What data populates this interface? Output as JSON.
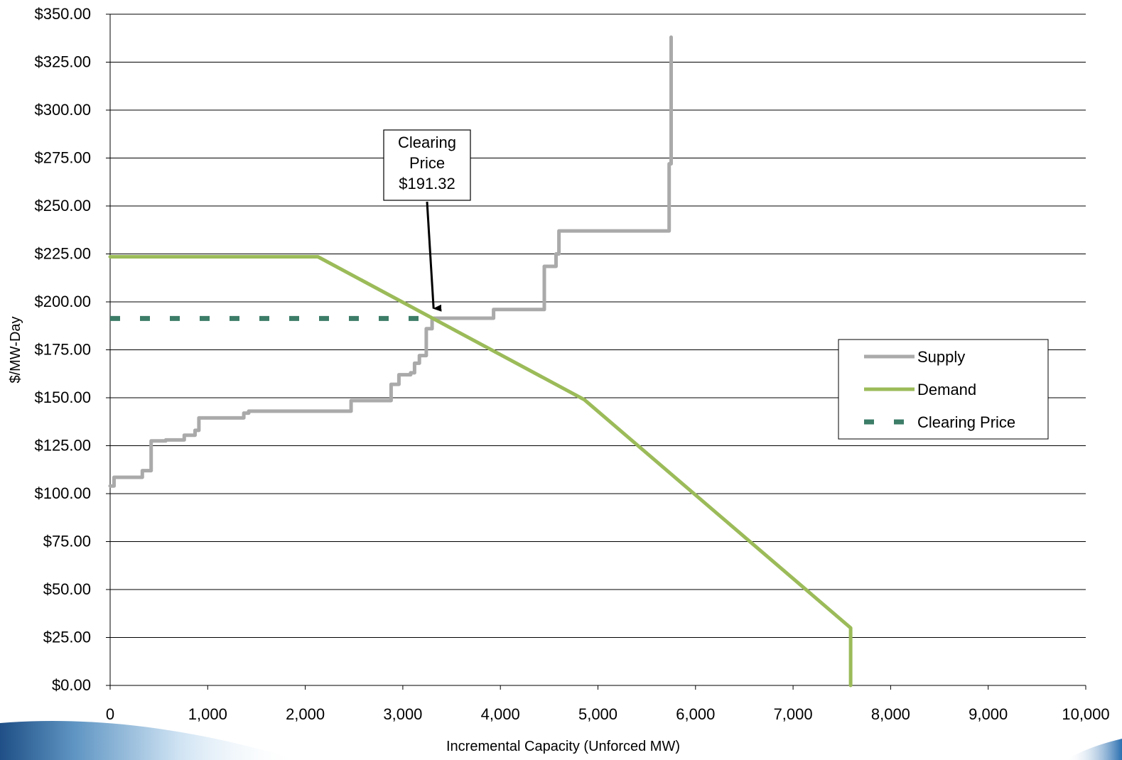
{
  "chart_data": {
    "type": "line",
    "xlabel": "Incremental Capacity (Unforced MW)",
    "ylabel": "$/MW-Day",
    "xlim": [
      0,
      10000
    ],
    "ylim": [
      0,
      350
    ],
    "x_ticks": [
      "0",
      "1,000",
      "2,000",
      "3,000",
      "4,000",
      "5,000",
      "6,000",
      "7,000",
      "8,000",
      "9,000",
      "10,000"
    ],
    "y_ticks": [
      "$0.00",
      "$25.00",
      "$50.00",
      "$75.00",
      "$100.00",
      "$125.00",
      "$150.00",
      "$175.00",
      "$200.00",
      "$225.00",
      "$250.00",
      "$275.00",
      "$300.00",
      "$325.00",
      "$350.00"
    ],
    "grid": "horizontal",
    "legend_position": "right",
    "series": [
      {
        "name": "Supply",
        "color": "#aaaaaa",
        "style": "solid",
        "points": [
          [
            0,
            104
          ],
          [
            40,
            104
          ],
          [
            40,
            108.5
          ],
          [
            330,
            108.5
          ],
          [
            330,
            112
          ],
          [
            420,
            112
          ],
          [
            420,
            127.5
          ],
          [
            570,
            127.5
          ],
          [
            570,
            128
          ],
          [
            760,
            128
          ],
          [
            760,
            130.5
          ],
          [
            870,
            130.5
          ],
          [
            870,
            133
          ],
          [
            910,
            133
          ],
          [
            910,
            139.5
          ],
          [
            1370,
            139.5
          ],
          [
            1370,
            142
          ],
          [
            1420,
            142
          ],
          [
            1420,
            143
          ],
          [
            2470,
            143
          ],
          [
            2470,
            148.5
          ],
          [
            2880,
            148.5
          ],
          [
            2880,
            157
          ],
          [
            2960,
            157
          ],
          [
            2960,
            162
          ],
          [
            3080,
            162
          ],
          [
            3080,
            163
          ],
          [
            3120,
            163
          ],
          [
            3120,
            168
          ],
          [
            3170,
            168
          ],
          [
            3170,
            172
          ],
          [
            3240,
            172
          ],
          [
            3240,
            186
          ],
          [
            3300,
            186
          ],
          [
            3300,
            191.5
          ],
          [
            3930,
            191.5
          ],
          [
            3930,
            196
          ],
          [
            4450,
            196
          ],
          [
            4450,
            218.5
          ],
          [
            4570,
            218.5
          ],
          [
            4570,
            225
          ],
          [
            4600,
            225
          ],
          [
            4600,
            237
          ],
          [
            5730,
            237
          ],
          [
            5730,
            272
          ],
          [
            5750,
            272
          ],
          [
            5750,
            338
          ]
        ]
      },
      {
        "name": "Demand",
        "color": "#9bbb59",
        "style": "solid",
        "points": [
          [
            0,
            223.5
          ],
          [
            2130,
            223.5
          ],
          [
            4860,
            149
          ],
          [
            7590,
            30
          ],
          [
            7590,
            0
          ]
        ]
      },
      {
        "name": "Clearing Price",
        "color": "#3c7d68",
        "style": "dashed",
        "points": [
          [
            0,
            191.32
          ],
          [
            3300,
            191.32
          ]
        ]
      }
    ],
    "annotations": [
      {
        "lines": [
          "Clearing",
          "Price",
          "$191.32"
        ],
        "arrow_to": [
          3330,
          191.32
        ]
      }
    ]
  }
}
